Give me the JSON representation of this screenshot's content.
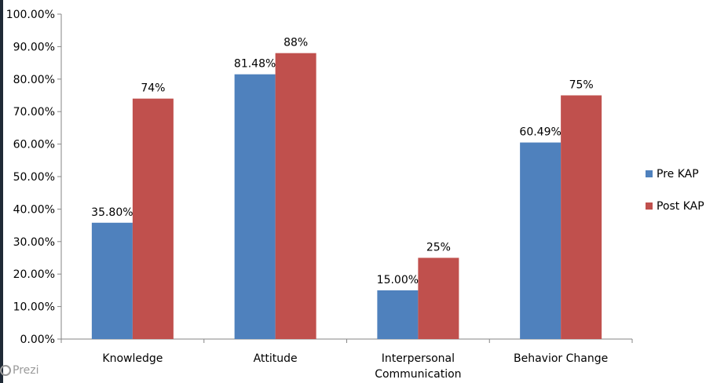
{
  "chart_data": {
    "type": "bar",
    "categories": [
      "Knowledge",
      "Attitude",
      "Interpersonal Communication",
      "Behavior Change"
    ],
    "series": [
      {
        "name": "Pre KAP",
        "values": [
          35.8,
          81.48,
          15.0,
          60.49
        ],
        "labels": [
          "35.80%",
          "81.48%",
          "15.00%",
          "60.49%"
        ],
        "color": "#4f81bd"
      },
      {
        "name": "Post KAP",
        "values": [
          74,
          88,
          25,
          75
        ],
        "labels": [
          "74%",
          "88%",
          "25%",
          "75%"
        ],
        "color": "#c0504d"
      }
    ],
    "y_ticks": [
      "0.00%",
      "10.00%",
      "20.00%",
      "30.00%",
      "40.00%",
      "50.00%",
      "60.00%",
      "70.00%",
      "80.00%",
      "90.00%",
      "100.00%"
    ],
    "ylim": [
      0,
      100
    ],
    "legend_position": "right",
    "grid": false
  },
  "watermark": {
    "text": "Prezi"
  }
}
